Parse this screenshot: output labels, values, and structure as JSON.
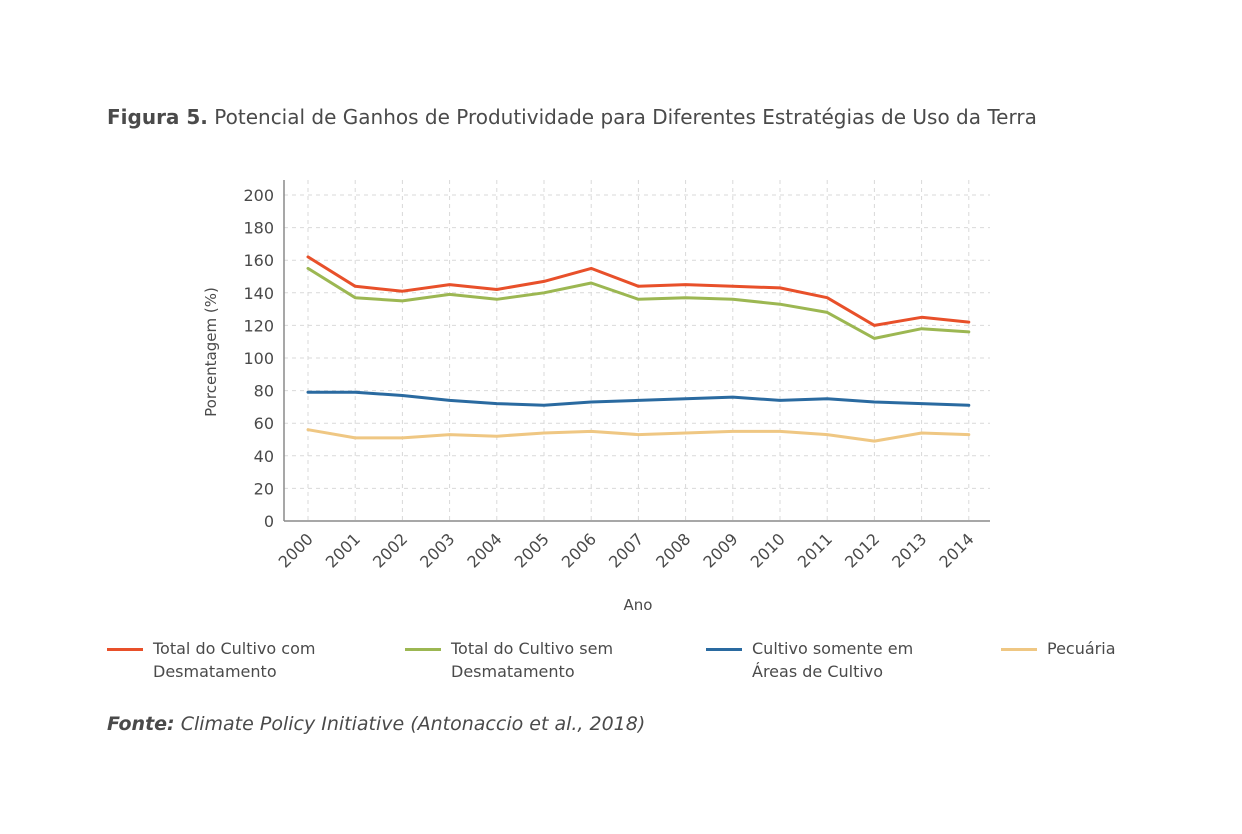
{
  "figure": {
    "label": "Figura 5.",
    "title": "Potencial de Ganhos de Produtividade para Diferentes Estratégias de Uso da Terra"
  },
  "source": {
    "label": "Fonte:",
    "text": "Climate Policy Initiative (Antonaccio et al., 2018)"
  },
  "chart_data": {
    "type": "line",
    "title": "",
    "xlabel": "Ano",
    "ylabel": "Porcentagem (%)",
    "x": [
      "2000",
      "2001",
      "2002",
      "2003",
      "2004",
      "2005",
      "2006",
      "2007",
      "2008",
      "2009",
      "2010",
      "2011",
      "2012",
      "2013",
      "2014"
    ],
    "ylim": [
      0,
      200
    ],
    "yticks": [
      0,
      20,
      40,
      60,
      80,
      100,
      120,
      140,
      160,
      180,
      200
    ],
    "grid": true,
    "legend_position": "bottom",
    "series": [
      {
        "name": "Total do Cultivo com\nDesmatamento",
        "color": "#e8502a",
        "values": [
          162,
          144,
          141,
          145,
          142,
          147,
          155,
          144,
          145,
          144,
          143,
          137,
          120,
          125,
          122
        ]
      },
      {
        "name": "Total do Cultivo sem\nDesmatamento",
        "color": "#9cb752",
        "values": [
          155,
          137,
          135,
          139,
          136,
          140,
          146,
          136,
          137,
          136,
          133,
          128,
          112,
          118,
          116
        ]
      },
      {
        "name": "Cultivo somente em\nÁreas de Cultivo",
        "color": "#2a6aa0",
        "values": [
          79,
          79,
          77,
          74,
          72,
          71,
          73,
          74,
          75,
          76,
          74,
          75,
          73,
          72,
          71
        ]
      },
      {
        "name": "Pecuária",
        "color": "#efc783",
        "values": [
          56,
          51,
          51,
          53,
          52,
          54,
          55,
          53,
          54,
          55,
          55,
          53,
          49,
          54,
          53
        ]
      }
    ]
  }
}
